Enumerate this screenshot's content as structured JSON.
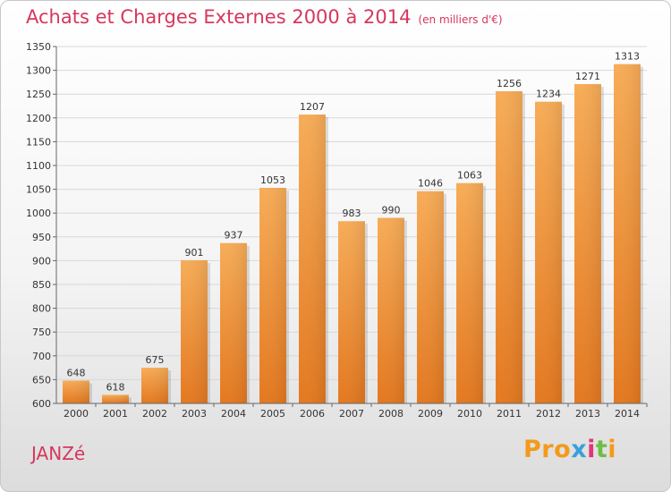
{
  "header": {
    "title": "Achats et Charges Externes 2000 à 2014",
    "unit": "(en milliers d'€)"
  },
  "footer": {
    "commune": "JANZé",
    "logo_letters": [
      "P",
      "r",
      "o",
      "x",
      "i",
      "t",
      "i"
    ],
    "logo_colors": [
      "#f39a1b",
      "#f39a1b",
      "#f39a1b",
      "#3b9fdc",
      "#e0357a",
      "#6cbe45",
      "#f39a1b"
    ]
  },
  "colors": {
    "bar": "#f0913a",
    "title": "#d6375c",
    "grid": "#d8d8d8"
  },
  "chart_data": {
    "type": "bar",
    "categories": [
      "2000",
      "2001",
      "2002",
      "2003",
      "2004",
      "2005",
      "2006",
      "2007",
      "2008",
      "2009",
      "2010",
      "2011",
      "2012",
      "2013",
      "2014"
    ],
    "values": [
      648,
      618,
      675,
      901,
      937,
      1053,
      1207,
      983,
      990,
      1046,
      1063,
      1256,
      1234,
      1271,
      1313
    ],
    "ylim": [
      600,
      1350
    ],
    "yticks": [
      600,
      650,
      700,
      750,
      800,
      850,
      900,
      950,
      1000,
      1050,
      1100,
      1150,
      1200,
      1250,
      1300,
      1350
    ],
    "grid": true,
    "legend": "none"
  }
}
